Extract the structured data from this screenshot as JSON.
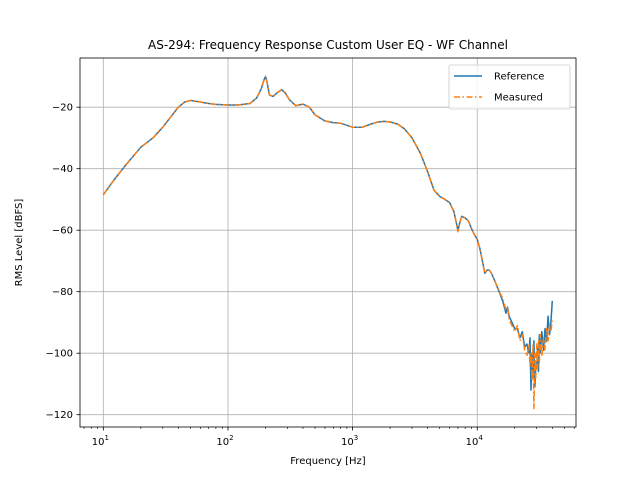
{
  "chart_data": {
    "type": "line",
    "title": "AS-294: Frequency Response Custom User EQ - WF Channel",
    "xlabel": "Frequency [Hz]",
    "ylabel": "RMS Level [dBFS]",
    "x_scale": "log",
    "xlim": [
      6.5,
      62000
    ],
    "ylim": [
      -124,
      -4
    ],
    "x_ticks": [
      {
        "value": 10,
        "base": "10",
        "exp": "1"
      },
      {
        "value": 100,
        "base": "10",
        "exp": "2"
      },
      {
        "value": 1000,
        "base": "10",
        "exp": "3"
      },
      {
        "value": 10000,
        "base": "10",
        "exp": "4"
      }
    ],
    "y_ticks": [
      {
        "value": -20,
        "label": "−20"
      },
      {
        "value": -40,
        "label": "−40"
      },
      {
        "value": -60,
        "label": "−60"
      },
      {
        "value": -80,
        "label": "−80"
      },
      {
        "value": -100,
        "label": "−100"
      },
      {
        "value": -120,
        "label": "−120"
      }
    ],
    "grid": true,
    "legend_position": "top-right",
    "series": [
      {
        "name": "Reference",
        "color": "#1f77b4",
        "style": "solid",
        "x": [
          10,
          12,
          15,
          20,
          25,
          30,
          35,
          40,
          45,
          50,
          60,
          70,
          80,
          100,
          120,
          150,
          170,
          185,
          195,
          200,
          205,
          215,
          230,
          250,
          270,
          290,
          310,
          350,
          400,
          450,
          500,
          600,
          700,
          800,
          1000,
          1200,
          1400,
          1600,
          1800,
          2000,
          2300,
          2600,
          3000,
          3500,
          4000,
          4500,
          5000,
          5500,
          6000,
          6500,
          7000,
          7200,
          7500,
          8000,
          8500,
          9000,
          9500,
          10000,
          10500,
          11000,
          11500,
          12000,
          12500,
          13000,
          14000,
          15000,
          16000,
          17000,
          17500,
          18000,
          19000,
          20000,
          21000,
          22000,
          23000,
          24000,
          25000,
          26000,
          26500,
          27000,
          27500,
          28000,
          28500,
          29000,
          29500,
          30000,
          30500,
          31000,
          31500,
          32000,
          33000,
          34000,
          35000,
          36000,
          37000,
          38000,
          39000,
          40000
        ],
        "y": [
          -48.5,
          -44,
          -39,
          -33,
          -30,
          -26.5,
          -23,
          -20,
          -18.3,
          -17.8,
          -18.3,
          -18.8,
          -19.1,
          -19.3,
          -19.3,
          -18.8,
          -17,
          -14,
          -11,
          -10,
          -11.5,
          -16,
          -16.5,
          -15.2,
          -14.3,
          -15.5,
          -17.5,
          -19.5,
          -19,
          -20,
          -22.5,
          -24.5,
          -25,
          -25.2,
          -26.5,
          -26.5,
          -25.5,
          -24.8,
          -24.6,
          -24.8,
          -25.5,
          -27,
          -30,
          -35,
          -41,
          -47,
          -49,
          -50,
          -51,
          -54,
          -60,
          -58,
          -55.5,
          -56,
          -57,
          -59.5,
          -61.5,
          -63,
          -66,
          -70,
          -74,
          -73,
          -73,
          -74,
          -77,
          -80,
          -83,
          -87,
          -85,
          -88,
          -90,
          -92,
          -92,
          -95,
          -93,
          -98,
          -97,
          -100,
          -95,
          -112,
          -100,
          -108,
          -96,
          -111,
          -104,
          -105,
          -98,
          -106,
          -94,
          -100,
          -93,
          -99,
          -92,
          -96,
          -88,
          -94,
          -90,
          -83
        ]
      },
      {
        "name": "Measured",
        "color": "#ff7f0e",
        "style": "dashdot",
        "x": [
          10,
          12,
          15,
          20,
          25,
          30,
          35,
          40,
          45,
          50,
          60,
          70,
          80,
          100,
          120,
          150,
          170,
          185,
          195,
          200,
          205,
          215,
          230,
          250,
          270,
          290,
          310,
          350,
          400,
          450,
          500,
          600,
          700,
          800,
          1000,
          1200,
          1400,
          1600,
          1800,
          2000,
          2300,
          2600,
          3000,
          3500,
          4000,
          4500,
          5000,
          5500,
          6000,
          6500,
          7000,
          7200,
          7500,
          8000,
          8500,
          9000,
          9500,
          10000,
          10500,
          11000,
          11500,
          12000,
          12500,
          13000,
          14000,
          15000,
          16000,
          17000,
          17500,
          18000,
          19000,
          20000,
          21000,
          22000,
          23000,
          24000,
          25000,
          26000,
          26500,
          27000,
          27500,
          28000,
          28500,
          29000,
          29500,
          30000,
          30500,
          31000,
          31500,
          32000,
          33000,
          34000,
          35000,
          36000,
          37000,
          38000,
          39000,
          40000
        ],
        "y": [
          -48.5,
          -44,
          -39,
          -33,
          -30,
          -26.5,
          -23,
          -20,
          -18.3,
          -17.8,
          -18.3,
          -18.8,
          -19.1,
          -19.3,
          -19.3,
          -18.8,
          -17,
          -14,
          -11,
          -10,
          -11.5,
          -16,
          -16.5,
          -15.2,
          -14.3,
          -15.5,
          -17.5,
          -19.5,
          -19,
          -20,
          -22.5,
          -24.5,
          -25,
          -25.2,
          -26.5,
          -26.5,
          -25.5,
          -24.8,
          -24.6,
          -24.8,
          -25.5,
          -27,
          -30,
          -35,
          -41,
          -47,
          -49,
          -50,
          -51,
          -54,
          -60.5,
          -58,
          -55.5,
          -56,
          -57,
          -59.5,
          -61.5,
          -63,
          -66,
          -70,
          -74,
          -73,
          -73,
          -74,
          -77,
          -80,
          -82,
          -86,
          -85,
          -89,
          -91,
          -93,
          -91,
          -96,
          -94,
          -99,
          -101,
          -97,
          -104,
          -100,
          -109,
          -97,
          -118,
          -100,
          -108,
          -97,
          -105,
          -96,
          -103,
          -94,
          -101,
          -95,
          -99,
          -92,
          -96,
          -91,
          -93,
          -89
        ]
      }
    ]
  }
}
